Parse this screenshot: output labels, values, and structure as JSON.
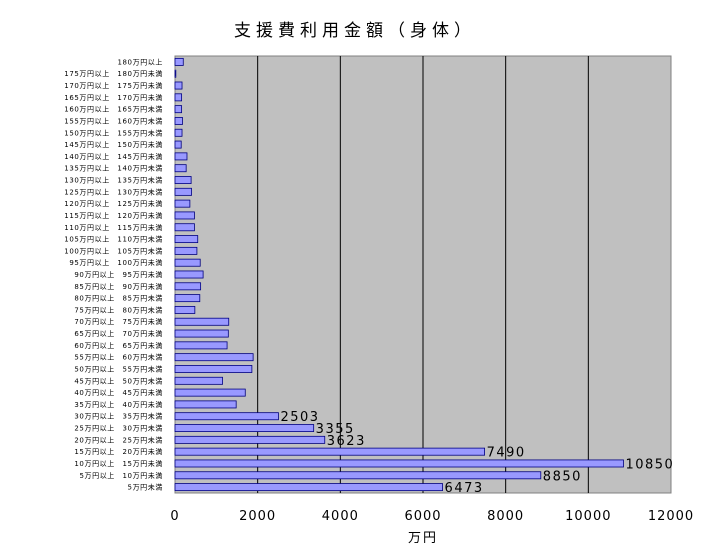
{
  "chart_data": {
    "type": "bar",
    "orientation": "horizontal",
    "title": "支援費利用金額（身体）",
    "xlabel": "万円",
    "ylabel": "",
    "xlim": [
      0,
      12000
    ],
    "xticks": [
      "0",
      "2000",
      "4000",
      "6000",
      "8000",
      "10000",
      "12000"
    ],
    "grid": "vertical",
    "legend": "none",
    "bar_color": "#9999ff",
    "plot_bg": "#c0c0c0",
    "categories": [
      "5万円未満",
      "5万円以上　10万円未満",
      "10万円以上　15万円未満",
      "15万円以上　20万円未満",
      "20万円以上　25万円未満",
      "25万円以上　30万円未満",
      "30万円以上　35万円未満",
      "35万円以上　40万円未満",
      "40万円以上　45万円未満",
      "45万円以上　50万円未満",
      "50万円以上　55万円未満",
      "55万円以上　60万円未満",
      "60万円以上　65万円未満",
      "65万円以上　70万円未満",
      "70万円以上　75万円未満",
      "75万円以上　80万円未満",
      "80万円以上　85万円未満",
      "85万円以上　90万円未満",
      "90万円以上　95万円未満",
      "95万円以上　100万円未満",
      "100万円以上　105万円未満",
      "105万円以上　110万円未満",
      "110万円以上　115万円未満",
      "115万円以上　120万円未満",
      "120万円以上　125万円未満",
      "125万円以上　130万円未満",
      "130万円以上　135万円未満",
      "135万円以上　140万円未満",
      "140万円以上　145万円未満",
      "145万円以上　150万円未満",
      "150万円以上　155万円未満",
      "155万円以上　160万円未満",
      "160万円以上　165万円未満",
      "165万円以上　170万円未満",
      "170万円以上　175万円未満",
      "175万円以上　180万円未満",
      "180万円以上"
    ],
    "values": [
      6473,
      8850,
      10850,
      7490,
      3623,
      3355,
      2503,
      1480,
      1700,
      1150,
      1860,
      1890,
      1260,
      1290,
      1300,
      480,
      600,
      620,
      680,
      610,
      530,
      550,
      470,
      470,
      360,
      400,
      390,
      270,
      290,
      150,
      170,
      180,
      160,
      160,
      170,
      20,
      200
    ],
    "data_labels": {
      "0": "6473",
      "1": "8850",
      "2": "10850",
      "3": "7490",
      "4": "3623",
      "5": "3355",
      "6": "2503"
    }
  }
}
